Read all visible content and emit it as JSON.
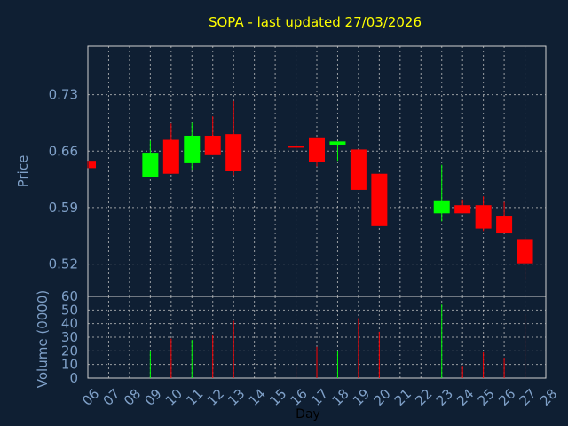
{
  "colors": {
    "background": "#0f1f33",
    "up": "#00ff00",
    "down": "#ff0000",
    "title": "#ffff00",
    "axis_text": "#7fa0c8"
  },
  "chart_data": {
    "type": "candlestick",
    "title": "SOPA - last updated 27/03/2026",
    "xlabel": "Day",
    "ylabel": "Price",
    "volume_ylabel": "Volume (0000)",
    "grid": true,
    "x_ticks": [
      "06",
      "07",
      "08",
      "09",
      "10",
      "11",
      "12",
      "13",
      "14",
      "15",
      "16",
      "17",
      "18",
      "19",
      "20",
      "21",
      "22",
      "23",
      "24",
      "25",
      "26",
      "27",
      "28"
    ],
    "price_ticks": [
      "0.52",
      "0.59",
      "0.66",
      "0.73"
    ],
    "volume_ticks": [
      "0",
      "10",
      "20",
      "30",
      "40",
      "50",
      "60"
    ],
    "ylim": [
      0.48,
      0.79
    ],
    "volume_ylim": [
      0,
      60
    ],
    "candles": [
      {
        "day": 6,
        "open": 0.648,
        "close": 0.639,
        "high": 0.648,
        "low": 0.639,
        "volume": 0
      },
      {
        "day": 9,
        "open": 0.628,
        "close": 0.658,
        "high": 0.673,
        "low": 0.628,
        "volume": 20
      },
      {
        "day": 10,
        "open": 0.674,
        "close": 0.632,
        "high": 0.694,
        "low": 0.632,
        "volume": 29
      },
      {
        "day": 11,
        "open": 0.645,
        "close": 0.679,
        "high": 0.695,
        "low": 0.637,
        "volume": 28
      },
      {
        "day": 12,
        "open": 0.679,
        "close": 0.655,
        "high": 0.703,
        "low": 0.655,
        "volume": 32
      },
      {
        "day": 13,
        "open": 0.681,
        "close": 0.635,
        "high": 0.722,
        "low": 0.63,
        "volume": 42
      },
      {
        "day": 16,
        "open": 0.665,
        "close": 0.665,
        "high": 0.671,
        "low": 0.66,
        "volume": 9
      },
      {
        "day": 17,
        "open": 0.677,
        "close": 0.647,
        "high": 0.677,
        "low": 0.641,
        "volume": 23
      },
      {
        "day": 18,
        "open": 0.668,
        "close": 0.672,
        "high": 0.672,
        "low": 0.648,
        "volume": 20
      },
      {
        "day": 19,
        "open": 0.662,
        "close": 0.612,
        "high": 0.662,
        "low": 0.612,
        "volume": 44
      },
      {
        "day": 20,
        "open": 0.632,
        "close": 0.567,
        "high": 0.632,
        "low": 0.567,
        "volume": 34
      },
      {
        "day": 23,
        "open": 0.583,
        "close": 0.599,
        "high": 0.643,
        "low": 0.573,
        "volume": 54
      },
      {
        "day": 24,
        "open": 0.593,
        "close": 0.583,
        "high": 0.6,
        "low": 0.583,
        "volume": 9
      },
      {
        "day": 25,
        "open": 0.593,
        "close": 0.564,
        "high": 0.604,
        "low": 0.561,
        "volume": 19
      },
      {
        "day": 26,
        "open": 0.58,
        "close": 0.558,
        "high": 0.597,
        "low": 0.558,
        "volume": 15
      },
      {
        "day": 27,
        "open": 0.551,
        "close": 0.521,
        "high": 0.556,
        "low": 0.5,
        "volume": 47
      }
    ]
  }
}
